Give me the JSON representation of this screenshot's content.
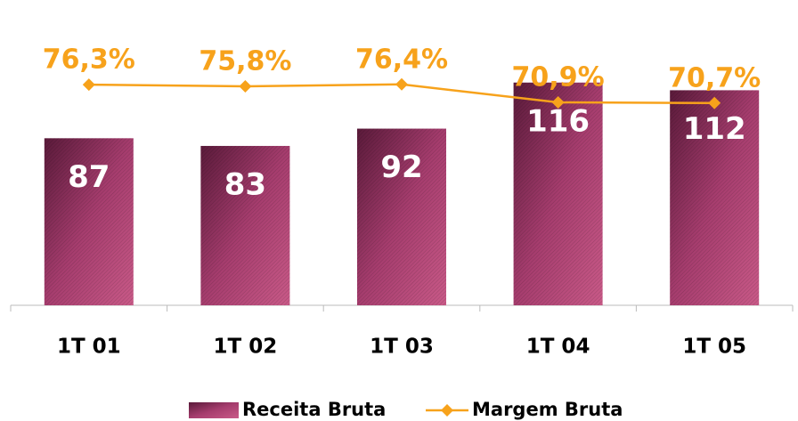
{
  "chart_data": {
    "type": "bar-line",
    "categories": [
      "1T 01",
      "1T 02",
      "1T 03",
      "1T 04",
      "1T 05"
    ],
    "series": [
      {
        "name": "Receita Bruta",
        "type": "bar",
        "color": "#a63d6e",
        "values": [
          87,
          83,
          92,
          116,
          112
        ]
      },
      {
        "name": "Margem Bruta",
        "type": "line",
        "axis": "y2",
        "color": "#f7a21b",
        "values": [
          76.3,
          75.8,
          76.4,
          70.9,
          70.7
        ],
        "value_labels": [
          "76,3%",
          "75,8%",
          "76,4%",
          "70,9%",
          "70,7%"
        ]
      }
    ],
    "ylim": [
      0,
      140
    ],
    "y2lim": [
      9,
      91
    ],
    "legend": "bottom"
  }
}
